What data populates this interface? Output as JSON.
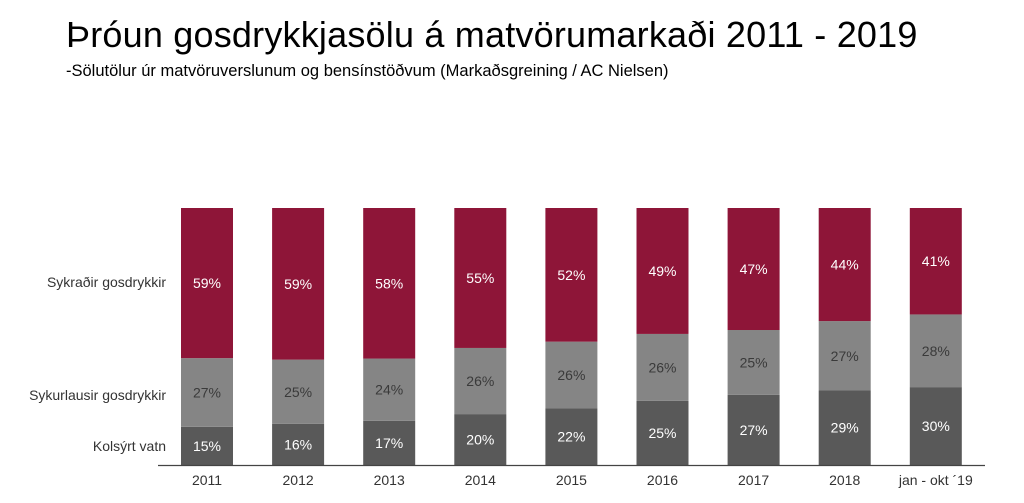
{
  "title": "Þróun gosdrykkjasölu á matvörumarkaði 2011 - 2019",
  "subtitle": "-Sölutölur úr matvöruverslunum og bensínstöðvum (Markaðsgreining / AC Nielsen)",
  "colors": {
    "sykradir": "#8e1538",
    "sykurlausir": "#858585",
    "kolsyrt": "#595959",
    "axis": "#444444"
  },
  "chart_data": {
    "type": "bar",
    "stacked": true,
    "normalized": true,
    "categories": [
      "2011",
      "2012",
      "2013",
      "2014",
      "2015",
      "2016",
      "2017",
      "2018",
      "jan - okt ´19"
    ],
    "series": [
      {
        "name": "Kolsýrt vatn",
        "values": [
          15,
          16,
          17,
          20,
          22,
          25,
          27,
          29,
          30
        ],
        "labels": [
          "15%",
          "16%",
          "17%",
          "20%",
          "22%",
          "25%",
          "27%",
          "29%",
          "30%"
        ]
      },
      {
        "name": "Sykurlausir gosdrykkir",
        "values": [
          27,
          25,
          24,
          26,
          26,
          26,
          25,
          27,
          28
        ],
        "labels": [
          "27%",
          "25%",
          "24%",
          "26%",
          "26%",
          "26%",
          "25%",
          "27%",
          "28%"
        ]
      },
      {
        "name": "Sykraðir gosdrykkir",
        "values": [
          59,
          59,
          58,
          55,
          52,
          49,
          47,
          44,
          41
        ],
        "labels": [
          "59%",
          "59%",
          "58%",
          "55%",
          "52%",
          "49%",
          "47%",
          "44%",
          "41%"
        ]
      }
    ],
    "legend": "left"
  }
}
